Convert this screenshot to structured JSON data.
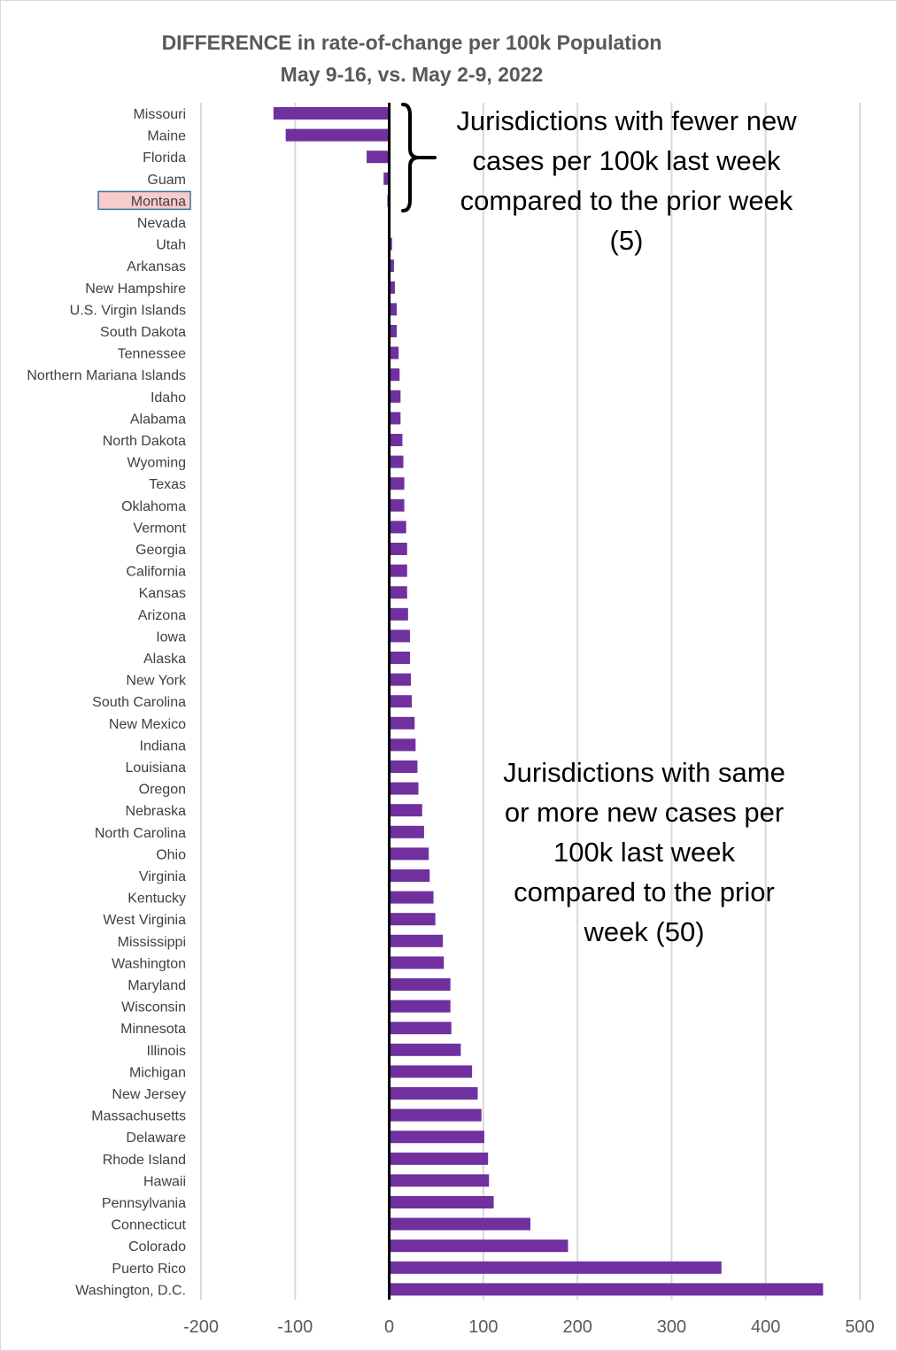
{
  "chart_data": {
    "type": "bar",
    "orientation": "horizontal",
    "title_lines": [
      "DIFFERENCE in rate-of-change per 100k Population",
      "May 9-16, vs. May 2-9, 2022"
    ],
    "xlabel": "",
    "ylabel": "",
    "xlim": [
      -200,
      500
    ],
    "xticks": [
      -200,
      -100,
      0,
      100,
      200,
      300,
      400,
      500
    ],
    "grid": true,
    "highlighted_category": "Montana",
    "categories": [
      "Missouri",
      "Maine",
      "Florida",
      "Guam",
      "Montana",
      "Nevada",
      "Utah",
      "Arkansas",
      "New Hampshire",
      "U.S. Virgin Islands",
      "South Dakota",
      "Tennessee",
      "Northern Mariana Islands",
      "Idaho",
      "Alabama",
      "North Dakota",
      "Wyoming",
      "Texas",
      "Oklahoma",
      "Vermont",
      "Georgia",
      "California",
      "Kansas",
      "Arizona",
      "Iowa",
      "Alaska",
      "New York",
      "South Carolina",
      "New Mexico",
      "Indiana",
      "Louisiana",
      "Oregon",
      "Nebraska",
      "North Carolina",
      "Ohio",
      "Virginia",
      "Kentucky",
      "West Virginia",
      "Mississippi",
      "Washington",
      "Maryland",
      "Wisconsin",
      "Minnesota",
      "Illinois",
      "Michigan",
      "New Jersey",
      "Massachusetts",
      "Delaware",
      "Rhode Island",
      "Hawaii",
      "Pennsylvania",
      "Connecticut",
      "Colorado",
      "Puerto Rico",
      "Washington, D.C."
    ],
    "values": [
      -123,
      -110,
      -24,
      -6,
      -2,
      0,
      3,
      5,
      6,
      8,
      8,
      10,
      11,
      12,
      12,
      14,
      15,
      16,
      16,
      18,
      19,
      19,
      19,
      20,
      22,
      22,
      23,
      24,
      27,
      28,
      30,
      31,
      35,
      37,
      42,
      43,
      47,
      49,
      57,
      58,
      65,
      65,
      66,
      76,
      88,
      94,
      98,
      101,
      105,
      106,
      111,
      150,
      190,
      353,
      461
    ],
    "bar_color": "#7030a0",
    "highlight_fill": "#f8cbcc",
    "highlight_border": "#41719c"
  },
  "annotations": {
    "top": "Jurisdictions with fewer new cases per 100k last week compared to the prior week (5)",
    "bottom": "Jurisdictions with same or more new cases per 100k last week compared to the prior week (50)"
  }
}
